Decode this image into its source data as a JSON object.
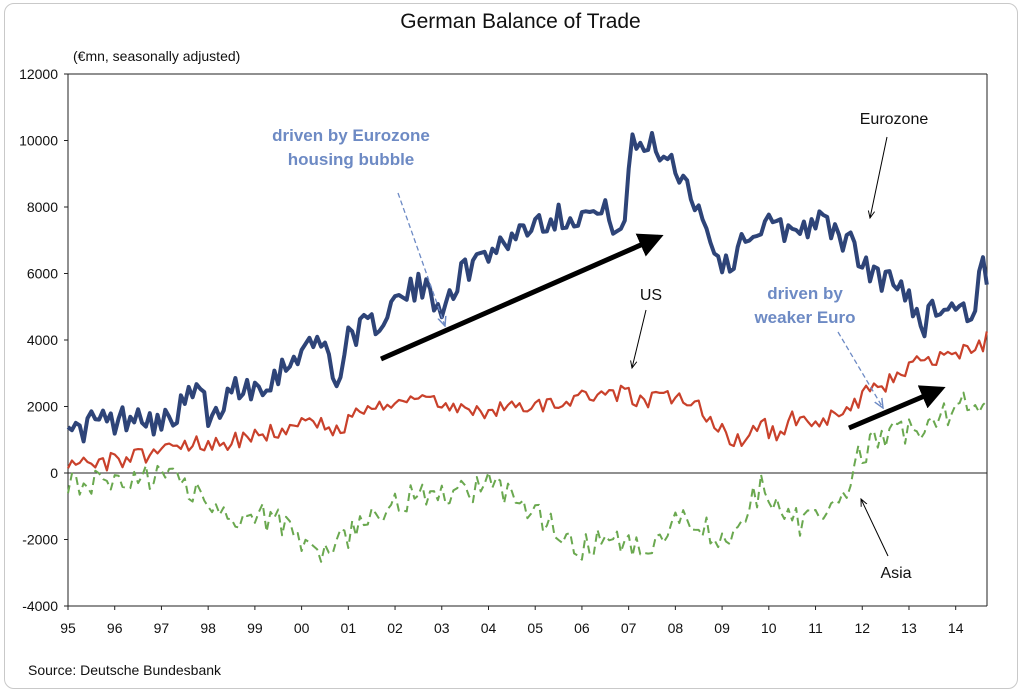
{
  "chart_data": {
    "type": "line",
    "title": "German Balance of Trade",
    "subtitle": "(€mn, seasonally adjusted)",
    "source": "Source: Deutsche Bundesbank",
    "xlabel": "",
    "ylabel": "",
    "ylim": [
      -4000,
      12000
    ],
    "yticks": [
      "12000",
      "10000",
      "8000",
      "6000",
      "4000",
      "2000",
      "0",
      "-2000",
      "-4000"
    ],
    "xlim": [
      1995,
      2014.67
    ],
    "xticks": [
      "95",
      "96",
      "97",
      "98",
      "99",
      "00",
      "01",
      "02",
      "03",
      "04",
      "05",
      "06",
      "07",
      "08",
      "09",
      "10",
      "11",
      "12",
      "13",
      "14"
    ],
    "grid": false,
    "series": [
      {
        "name": "Eurozone",
        "color": "#2e4478",
        "style": "solid",
        "anchors": [
          [
            1995.0,
            1800
          ],
          [
            1995.2,
            1100
          ],
          [
            1995.5,
            1600
          ],
          [
            1996.0,
            1500
          ],
          [
            1996.5,
            1900
          ],
          [
            1997.0,
            1400
          ],
          [
            1997.5,
            2100
          ],
          [
            1997.9,
            2600
          ],
          [
            1998.0,
            1200
          ],
          [
            1998.5,
            2600
          ],
          [
            1999.0,
            2600
          ],
          [
            1999.5,
            3000
          ],
          [
            2000.0,
            3800
          ],
          [
            2000.5,
            3900
          ],
          [
            2000.8,
            2600
          ],
          [
            2001.0,
            4200
          ],
          [
            2001.5,
            4400
          ],
          [
            2002.0,
            5100
          ],
          [
            2002.5,
            5600
          ],
          [
            2003.0,
            5100
          ],
          [
            2003.5,
            6100
          ],
          [
            2004.0,
            6700
          ],
          [
            2004.5,
            7100
          ],
          [
            2005.0,
            7600
          ],
          [
            2005.5,
            7700
          ],
          [
            2006.0,
            7800
          ],
          [
            2006.5,
            7800
          ],
          [
            2006.9,
            7300
          ],
          [
            2007.05,
            9800
          ],
          [
            2007.5,
            9900
          ],
          [
            2008.0,
            9300
          ],
          [
            2008.4,
            8300
          ],
          [
            2008.8,
            6900
          ],
          [
            2009.1,
            6100
          ],
          [
            2009.5,
            7200
          ],
          [
            2010.0,
            7400
          ],
          [
            2010.5,
            7300
          ],
          [
            2011.0,
            7600
          ],
          [
            2011.5,
            7200
          ],
          [
            2011.8,
            6800
          ],
          [
            2012.0,
            6200
          ],
          [
            2012.5,
            5800
          ],
          [
            2013.0,
            5400
          ],
          [
            2013.3,
            4400
          ],
          [
            2013.6,
            5100
          ],
          [
            2014.0,
            5000
          ],
          [
            2014.4,
            4800
          ],
          [
            2014.55,
            6500
          ],
          [
            2014.67,
            5500
          ]
        ],
        "noise": 420
      },
      {
        "name": "US",
        "color": "#c9412b",
        "style": "solid",
        "anchors": [
          [
            1995.0,
            400
          ],
          [
            1995.5,
            300
          ],
          [
            1996.0,
            350
          ],
          [
            1996.5,
            500
          ],
          [
            1997.0,
            700
          ],
          [
            1997.5,
            900
          ],
          [
            1998.0,
            900
          ],
          [
            1998.5,
            950
          ],
          [
            1999.0,
            1100
          ],
          [
            1999.5,
            1300
          ],
          [
            2000.0,
            1500
          ],
          [
            2000.5,
            1500
          ],
          [
            2000.9,
            1000
          ],
          [
            2001.0,
            1800
          ],
          [
            2001.5,
            2000
          ],
          [
            2002.0,
            2200
          ],
          [
            2002.5,
            2400
          ],
          [
            2003.0,
            2000
          ],
          [
            2003.5,
            1800
          ],
          [
            2004.0,
            1900
          ],
          [
            2004.5,
            2100
          ],
          [
            2005.0,
            2000
          ],
          [
            2005.5,
            2200
          ],
          [
            2006.0,
            2300
          ],
          [
            2006.5,
            2200
          ],
          [
            2006.9,
            2500
          ],
          [
            2007.3,
            2100
          ],
          [
            2007.8,
            2300
          ],
          [
            2008.3,
            2200
          ],
          [
            2008.8,
            1500
          ],
          [
            2009.3,
            900
          ],
          [
            2009.8,
            1500
          ],
          [
            2010.2,
            1100
          ],
          [
            2010.5,
            1600
          ],
          [
            2011.0,
            1600
          ],
          [
            2011.5,
            1700
          ],
          [
            2012.0,
            2300
          ],
          [
            2012.5,
            2700
          ],
          [
            2013.0,
            3200
          ],
          [
            2013.5,
            3400
          ],
          [
            2014.0,
            3600
          ],
          [
            2014.5,
            3800
          ],
          [
            2014.67,
            4000
          ]
        ],
        "noise": 260
      },
      {
        "name": "Asia",
        "color": "#6aa84f",
        "style": "dashed",
        "anchors": [
          [
            1995.0,
            -200
          ],
          [
            1995.5,
            -300
          ],
          [
            1996.0,
            -200
          ],
          [
            1996.5,
            -150
          ],
          [
            1997.0,
            -100
          ],
          [
            1997.5,
            -400
          ],
          [
            1998.0,
            -1000
          ],
          [
            1998.5,
            -1300
          ],
          [
            1999.0,
            -1200
          ],
          [
            1999.5,
            -1500
          ],
          [
            2000.0,
            -2100
          ],
          [
            2000.3,
            -2500
          ],
          [
            2000.7,
            -2200
          ],
          [
            2001.0,
            -1900
          ],
          [
            2001.5,
            -1300
          ],
          [
            2002.0,
            -900
          ],
          [
            2002.5,
            -600
          ],
          [
            2003.0,
            -700
          ],
          [
            2003.5,
            -600
          ],
          [
            2004.0,
            -300
          ],
          [
            2004.5,
            -600
          ],
          [
            2005.0,
            -1300
          ],
          [
            2005.5,
            -1700
          ],
          [
            2006.0,
            -2300
          ],
          [
            2006.5,
            -2000
          ],
          [
            2007.0,
            -2200
          ],
          [
            2007.5,
            -2000
          ],
          [
            2008.0,
            -1500
          ],
          [
            2008.5,
            -1600
          ],
          [
            2009.0,
            -2000
          ],
          [
            2009.5,
            -1200
          ],
          [
            2009.9,
            -300
          ],
          [
            2010.3,
            -1200
          ],
          [
            2010.7,
            -1500
          ],
          [
            2011.0,
            -1200
          ],
          [
            2011.4,
            -1000
          ],
          [
            2011.7,
            -800
          ],
          [
            2011.9,
            500
          ],
          [
            2012.3,
            900
          ],
          [
            2013.0,
            1300
          ],
          [
            2013.5,
            1600
          ],
          [
            2014.0,
            1900
          ],
          [
            2014.67,
            2300
          ]
        ],
        "noise": 420
      }
    ],
    "annotations": [
      {
        "text": "driven by Eurozone",
        "color": "#6d8ac4"
      },
      {
        "text": "housing bubble",
        "color": "#6d8ac4"
      },
      {
        "text": "driven by",
        "color": "#6d8ac4"
      },
      {
        "text": "weaker Euro",
        "color": "#6d8ac4"
      },
      {
        "text": "Eurozone",
        "color": "#111111"
      },
      {
        "text": "US",
        "color": "#111111"
      },
      {
        "text": "Asia",
        "color": "#111111"
      }
    ]
  }
}
